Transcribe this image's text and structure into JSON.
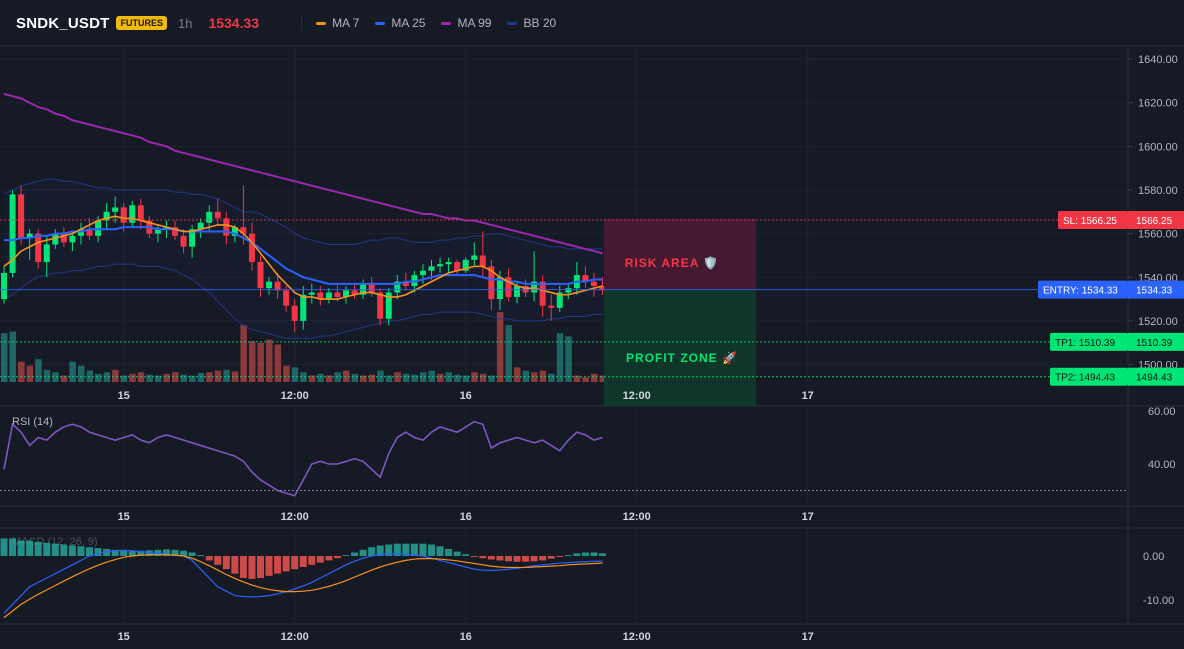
{
  "header": {
    "symbol": "SNDK_USDT",
    "badge": "FUTURES",
    "timeframe": "1h",
    "last_price": "1534.33",
    "legend": [
      {
        "label": "MA 7",
        "color": "#f7931a"
      },
      {
        "label": "MA 25",
        "color": "#2962ff"
      },
      {
        "label": "MA 99",
        "color": "#9c27b0"
      },
      {
        "label": "BB 20",
        "color": "#1e3a8a"
      }
    ]
  },
  "colors": {
    "up": "#26a69a",
    "down": "#ef5350",
    "candle_up": "#00e676",
    "candle_down": "#f23645",
    "sl": "#f23645",
    "entry": "#2962ff",
    "tp": "#00e676",
    "risk_zone": "#4a1a33",
    "profit_zone": "#0d3a2a"
  },
  "chart_data": [
    {
      "type": "candlestick",
      "title": "SNDK_USDT 1h",
      "ylim": [
        1492,
        1646
      ],
      "y_ticks": [
        "1640.00",
        "1620.00",
        "1600.00",
        "1580.00",
        "1560.00",
        "1540.00",
        "1520.00",
        "1500.00"
      ],
      "y_tick_values": [
        1640,
        1620,
        1600,
        1580,
        1560,
        1540,
        1520,
        1500
      ],
      "time_ticks": [
        "15",
        "12:00",
        "16",
        "12:00",
        "17"
      ],
      "time_tick_index": [
        14,
        34,
        54,
        74,
        94
      ],
      "candles": [
        [
          1530,
          1545,
          1528,
          1542
        ],
        [
          1542,
          1580,
          1540,
          1578
        ],
        [
          1578,
          1582,
          1555,
          1558
        ],
        [
          1558,
          1562,
          1548,
          1560
        ],
        [
          1560,
          1562,
          1544,
          1547
        ],
        [
          1547,
          1559,
          1540,
          1555
        ],
        [
          1555,
          1562,
          1553,
          1560
        ],
        [
          1560,
          1563,
          1554,
          1556
        ],
        [
          1556,
          1561,
          1552,
          1559
        ],
        [
          1559,
          1565,
          1555,
          1562
        ],
        [
          1562,
          1567,
          1557,
          1559
        ],
        [
          1559,
          1568,
          1556,
          1566
        ],
        [
          1566,
          1574,
          1562,
          1570
        ],
        [
          1570,
          1577,
          1565,
          1572
        ],
        [
          1572,
          1574,
          1561,
          1565
        ],
        [
          1565,
          1575,
          1563,
          1573
        ],
        [
          1573,
          1576,
          1562,
          1566
        ],
        [
          1566,
          1568,
          1558,
          1560
        ],
        [
          1560,
          1564,
          1556,
          1562
        ],
        [
          1562,
          1566,
          1558,
          1563
        ],
        [
          1563,
          1566,
          1557,
          1559
        ],
        [
          1559,
          1562,
          1551,
          1554
        ],
        [
          1554,
          1564,
          1549,
          1562
        ],
        [
          1562,
          1567,
          1558,
          1565
        ],
        [
          1565,
          1573,
          1561,
          1570
        ],
        [
          1570,
          1576,
          1564,
          1567
        ],
        [
          1567,
          1570,
          1555,
          1559
        ],
        [
          1559,
          1564,
          1556,
          1563
        ],
        [
          1563,
          1582,
          1555,
          1560
        ],
        [
          1560,
          1565,
          1543,
          1547
        ],
        [
          1547,
          1550,
          1531,
          1535
        ],
        [
          1535,
          1540,
          1532,
          1538
        ],
        [
          1538,
          1542,
          1530,
          1534
        ],
        [
          1534,
          1536,
          1524,
          1527
        ],
        [
          1527,
          1530,
          1515,
          1520
        ],
        [
          1520,
          1536,
          1516,
          1532
        ],
        [
          1532,
          1537,
          1528,
          1533
        ],
        [
          1533,
          1536,
          1527,
          1530
        ],
        [
          1530,
          1535,
          1528,
          1533
        ],
        [
          1533,
          1537,
          1529,
          1531
        ],
        [
          1531,
          1536,
          1528,
          1534
        ],
        [
          1534,
          1537,
          1530,
          1532
        ],
        [
          1532,
          1539,
          1530,
          1537
        ],
        [
          1537,
          1540,
          1531,
          1533
        ],
        [
          1533,
          1535,
          1518,
          1521
        ],
        [
          1521,
          1535,
          1518,
          1533
        ],
        [
          1533,
          1541,
          1530,
          1538
        ],
        [
          1538,
          1542,
          1534,
          1536
        ],
        [
          1536,
          1543,
          1533,
          1541
        ],
        [
          1541,
          1546,
          1537,
          1543
        ],
        [
          1543,
          1548,
          1539,
          1545
        ],
        [
          1545,
          1549,
          1542,
          1546
        ],
        [
          1546,
          1549,
          1542,
          1547
        ],
        [
          1547,
          1548,
          1541,
          1543
        ],
        [
          1543,
          1549,
          1542,
          1548
        ],
        [
          1548,
          1556,
          1545,
          1550
        ],
        [
          1550,
          1561,
          1540,
          1545
        ],
        [
          1545,
          1548,
          1525,
          1530
        ],
        [
          1530,
          1543,
          1525,
          1540
        ],
        [
          1540,
          1544,
          1529,
          1531
        ],
        [
          1531,
          1538,
          1528,
          1536
        ],
        [
          1536,
          1539,
          1531,
          1533
        ],
        [
          1533,
          1552,
          1529,
          1538
        ],
        [
          1538,
          1541,
          1522,
          1527
        ],
        [
          1527,
          1532,
          1520,
          1526
        ],
        [
          1526,
          1536,
          1524,
          1533
        ],
        [
          1533,
          1537,
          1530,
          1535
        ],
        [
          1535,
          1547,
          1532,
          1541
        ],
        [
          1541,
          1545,
          1535,
          1538
        ],
        [
          1538,
          1542,
          1531,
          1536
        ],
        [
          1536,
          1540,
          1532,
          1534
        ]
      ],
      "ma7": [
        1545,
        1548,
        1552,
        1554,
        1556,
        1557,
        1558,
        1559,
        1560,
        1562,
        1564,
        1566,
        1567,
        1568,
        1567,
        1567,
        1566,
        1565,
        1564,
        1563,
        1562,
        1561,
        1561,
        1562,
        1563,
        1564,
        1564,
        1563,
        1560,
        1556,
        1551,
        1546,
        1541,
        1537,
        1533,
        1531,
        1531,
        1530,
        1530,
        1530,
        1531,
        1532,
        1533,
        1533,
        1532,
        1531,
        1531,
        1532,
        1534,
        1536,
        1538,
        1540,
        1542,
        1543,
        1544,
        1545,
        1545,
        1543,
        1540,
        1538,
        1536,
        1535,
        1535,
        1534,
        1533,
        1532,
        1532,
        1533,
        1534,
        1535,
        1536
      ],
      "ma25": [
        1557,
        1557,
        1558,
        1558,
        1559,
        1559,
        1560,
        1560,
        1561,
        1561,
        1562,
        1562,
        1562,
        1562,
        1563,
        1563,
        1563,
        1563,
        1562,
        1562,
        1562,
        1561,
        1561,
        1561,
        1561,
        1561,
        1561,
        1560,
        1558,
        1556,
        1553,
        1550,
        1547,
        1544,
        1542,
        1540,
        1539,
        1538,
        1537,
        1537,
        1537,
        1537,
        1537,
        1537,
        1537,
        1537,
        1537,
        1538,
        1538,
        1539,
        1540,
        1541,
        1541,
        1541,
        1541,
        1541,
        1540,
        1539,
        1539,
        1538,
        1538,
        1537,
        1537,
        1537,
        1537,
        1537,
        1537,
        1538,
        1538,
        1539,
        1539
      ],
      "ma99": [
        1624,
        1623,
        1622,
        1620,
        1618,
        1617,
        1615,
        1614,
        1612,
        1611,
        1610,
        1609,
        1608,
        1607,
        1606,
        1605,
        1604,
        1602,
        1601,
        1600,
        1598,
        1597,
        1596,
        1595,
        1594,
        1593,
        1592,
        1591,
        1590,
        1589,
        1588,
        1587,
        1586,
        1585,
        1584,
        1583,
        1582,
        1581,
        1580,
        1579,
        1578,
        1577,
        1576,
        1575,
        1574,
        1573,
        1572,
        1571,
        1570,
        1569,
        1569,
        1568,
        1567,
        1567,
        1566,
        1566,
        1565,
        1564,
        1563,
        1562,
        1561,
        1560,
        1559,
        1558,
        1557,
        1556,
        1555,
        1554,
        1553,
        1552,
        1551
      ],
      "bb_upper": [
        1578,
        1580,
        1582,
        1583,
        1584,
        1585,
        1585,
        1584,
        1584,
        1583,
        1582,
        1581,
        1581,
        1580,
        1580,
        1580,
        1580,
        1580,
        1580,
        1580,
        1579,
        1579,
        1578,
        1578,
        1577,
        1576,
        1574,
        1572,
        1570,
        1570,
        1569,
        1567,
        1565,
        1563,
        1560,
        1558,
        1557,
        1556,
        1555,
        1555,
        1555,
        1555,
        1556,
        1557,
        1557,
        1558,
        1558,
        1557,
        1556,
        1556,
        1556,
        1557,
        1557,
        1558,
        1558,
        1559,
        1559,
        1560,
        1560,
        1559,
        1558,
        1557,
        1556,
        1555,
        1554,
        1554,
        1553,
        1553,
        1553,
        1553,
        1553
      ],
      "bb_lower": [
        1530,
        1532,
        1535,
        1538,
        1540,
        1541,
        1542,
        1542,
        1543,
        1543,
        1544,
        1545,
        1545,
        1546,
        1546,
        1546,
        1545,
        1545,
        1545,
        1544,
        1543,
        1541,
        1539,
        1536,
        1533,
        1529,
        1525,
        1521,
        1518,
        1516,
        1515,
        1514,
        1513,
        1512,
        1512,
        1512,
        1512,
        1513,
        1513,
        1514,
        1515,
        1516,
        1517,
        1518,
        1519,
        1520,
        1520,
        1521,
        1522,
        1523,
        1523,
        1524,
        1524,
        1524,
        1524,
        1524,
        1523,
        1522,
        1521,
        1521,
        1520,
        1520,
        1520,
        1520,
        1521,
        1521,
        1522,
        1522,
        1522,
        1523,
        1523
      ],
      "volume": [
        60,
        62,
        25,
        20,
        28,
        15,
        12,
        8,
        25,
        20,
        14,
        10,
        12,
        15,
        8,
        10,
        12,
        9,
        8,
        10,
        12,
        9,
        8,
        11,
        12,
        14,
        15,
        13,
        70,
        50,
        48,
        52,
        46,
        20,
        18,
        12,
        8,
        10,
        8,
        12,
        14,
        10,
        8,
        9,
        14,
        8,
        12,
        10,
        9,
        12,
        14,
        10,
        12,
        9,
        8,
        12,
        10,
        8,
        86,
        70,
        18,
        14,
        12,
        14,
        10,
        60,
        56,
        8,
        6,
        10,
        8
      ],
      "volume_up": [
        1,
        1,
        0,
        0,
        1,
        1,
        1,
        0,
        1,
        1,
        1,
        1,
        1,
        0,
        1,
        0,
        0,
        1,
        1,
        0,
        0,
        1,
        1,
        1,
        0,
        0,
        1,
        0,
        0,
        0,
        0,
        0,
        0,
        0,
        1,
        1,
        0,
        1,
        0,
        1,
        0,
        1,
        0,
        0,
        1,
        1,
        0,
        1,
        1,
        1,
        1,
        0,
        1,
        1,
        1,
        0,
        0,
        1,
        0,
        1,
        0,
        1,
        0,
        0,
        1,
        1,
        1,
        0,
        0,
        0,
        0
      ],
      "sl": {
        "value": 1566.25,
        "label": "SL: 1566.25",
        "axis": "1566.25"
      },
      "entry": {
        "value": 1534.33,
        "label": "ENTRY: 1534.33",
        "axis": "1534.33"
      },
      "tp1": {
        "value": 1510.39,
        "label": "TP1: 1510.39",
        "axis": "1510.39"
      },
      "tp2": {
        "value": 1494.43,
        "label": "TP2: 1494.43",
        "axis": "1494.43"
      },
      "risk_label": "RISK AREA 🛡️",
      "profit_label": "PROFIT ZONE 🚀"
    },
    {
      "type": "line",
      "title": "RSI (14)",
      "ylim": [
        25,
        65
      ],
      "y_ticks": [
        "60.00",
        "40.00"
      ],
      "y_tick_values": [
        60,
        40
      ],
      "reference_line": 30,
      "time_ticks": [
        "15",
        "12:00",
        "16",
        "12:00",
        "17"
      ],
      "values": [
        38,
        55,
        52,
        47,
        50,
        49,
        52,
        54,
        55,
        54,
        52,
        51,
        50,
        49,
        50,
        51,
        49,
        48,
        50,
        51,
        50,
        49,
        48,
        47,
        46,
        45,
        44,
        43,
        41,
        37,
        34,
        32,
        30,
        29,
        28,
        34,
        40,
        41,
        40,
        40,
        41,
        42,
        41,
        38,
        35,
        44,
        50,
        52,
        50,
        49,
        52,
        54,
        53,
        52,
        54,
        56,
        55,
        46,
        48,
        49,
        50,
        49,
        48,
        49,
        47,
        45,
        49,
        52,
        51,
        49,
        50
      ]
    },
    {
      "type": "bar",
      "title": "MACD (12, 26, 9)",
      "ylim": [
        -15,
        5
      ],
      "y_ticks": [
        "0.00",
        "-10.00"
      ],
      "y_tick_values": [
        0,
        -10
      ],
      "time_ticks": [
        "15",
        "12:00",
        "16",
        "12:00",
        "17"
      ],
      "histogram": [
        4,
        4,
        3.5,
        3.5,
        3.2,
        3,
        2.8,
        2.6,
        2.4,
        2.2,
        2,
        1.8,
        1.6,
        1.4,
        1.3,
        1.2,
        1.2,
        1.3,
        1.4,
        1.5,
        1.4,
        1.2,
        0.8,
        0.2,
        -1,
        -2,
        -3,
        -4,
        -5,
        -5.2,
        -5,
        -4.5,
        -4,
        -3.5,
        -3,
        -2.5,
        -2,
        -1.5,
        -1,
        -0.5,
        0.2,
        0.8,
        1.4,
        2,
        2.4,
        2.6,
        2.8,
        2.8,
        2.8,
        2.8,
        2.6,
        2.2,
        1.6,
        1,
        0.4,
        -0.2,
        -0.5,
        -0.8,
        -1,
        -1.2,
        -1.3,
        -1.3,
        -1.2,
        -1,
        -0.6,
        -0.2,
        0.2,
        0.6,
        0.8,
        0.8,
        0.6
      ],
      "macd": [
        -13,
        -11,
        -9,
        -7,
        -6,
        -5,
        -4,
        -3,
        -2,
        -1,
        0,
        0.5,
        1,
        1.2,
        1.3,
        1.2,
        1,
        0.8,
        0.6,
        0.4,
        0.2,
        0,
        -1,
        -3,
        -5,
        -7,
        -8,
        -9,
        -9.2,
        -9.3,
        -9.2,
        -9,
        -8.6,
        -8.1,
        -7.5,
        -6.8,
        -6,
        -5,
        -4,
        -3,
        -2,
        -1.2,
        -0.5,
        0,
        0.3,
        0.5,
        0.5,
        0.4,
        0.2,
        0,
        -0.5,
        -1,
        -1.5,
        -2,
        -2.5,
        -3,
        -3.2,
        -3.3,
        -3.2,
        -3,
        -2.8,
        -2.5,
        -2.2,
        -2,
        -1.8,
        -1.6,
        -1.5,
        -1.4,
        -1.3,
        -1.2,
        -1.2
      ],
      "signal": [
        -14,
        -12.5,
        -11,
        -9.8,
        -8.7,
        -7.7,
        -6.7,
        -5.7,
        -4.7,
        -3.8,
        -2.9,
        -2.1,
        -1.4,
        -0.8,
        -0.3,
        0,
        0.2,
        0.3,
        0.3,
        0.3,
        0.2,
        0,
        -0.5,
        -1.3,
        -2.2,
        -3.2,
        -4.2,
        -5.1,
        -5.9,
        -6.6,
        -7.2,
        -7.6,
        -7.9,
        -8.1,
        -8.1,
        -8,
        -7.8,
        -7.4,
        -6.9,
        -6.3,
        -5.6,
        -4.8,
        -4,
        -3.2,
        -2.5,
        -1.9,
        -1.4,
        -1,
        -0.7,
        -0.6,
        -0.6,
        -0.7,
        -0.9,
        -1.1,
        -1.4,
        -1.7,
        -2,
        -2.3,
        -2.5,
        -2.6,
        -2.6,
        -2.6,
        -2.5,
        -2.4,
        -2.3,
        -2.2,
        -2,
        -1.9,
        -1.8,
        -1.7,
        -1.6
      ]
    }
  ]
}
